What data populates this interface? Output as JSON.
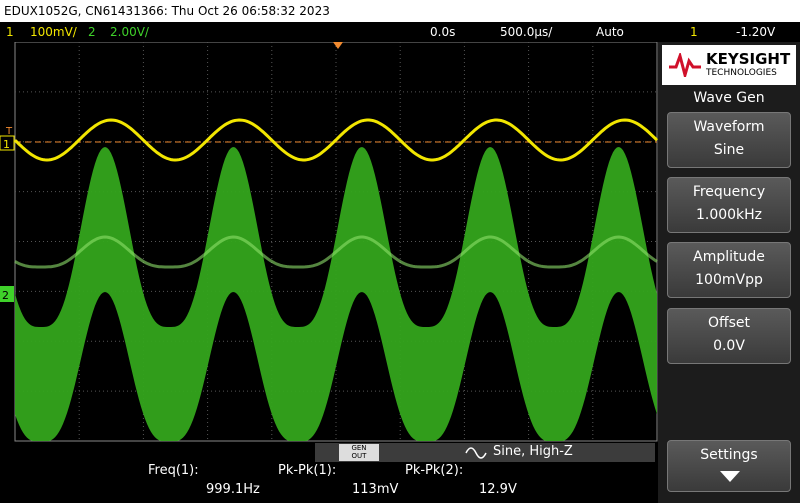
{
  "header": {
    "title": "EDUX1052G, CN61431366: Thu Oct 26 06:58:32 2023"
  },
  "status": {
    "ch1": "1",
    "ch1_scale": "100mV/",
    "ch2": "2",
    "ch2_scale": "2.00V/",
    "time_delay": "0.0s",
    "time_scale": "500.0µs/",
    "trigger_mode": "Auto",
    "trigger_source": "1",
    "trigger_level": "-1.20V"
  },
  "markers": {
    "trigger": "T",
    "ch1": "1",
    "ch2": "2"
  },
  "brand": {
    "name": "KEYSIGHT",
    "sub": "TECHNOLOGIES"
  },
  "menu": {
    "title": "Wave Gen",
    "items": [
      {
        "label": "Waveform",
        "value": "Sine"
      },
      {
        "label": "Frequency",
        "value": "1.000kHz"
      },
      {
        "label": "Amplitude",
        "value": "100mVpp"
      },
      {
        "label": "Offset",
        "value": "0.0V"
      }
    ],
    "settings": "Settings"
  },
  "gen_out": {
    "badge_top": "GEN",
    "badge_bottom": "OUT",
    "text": "Sine, High-Z"
  },
  "measurements": [
    {
      "label": "Freq(1):",
      "value": "999.1Hz"
    },
    {
      "label": "Pk-Pk(1):",
      "value": "113mV"
    },
    {
      "label": "Pk-Pk(2):",
      "value": "12.9V"
    }
  ]
}
